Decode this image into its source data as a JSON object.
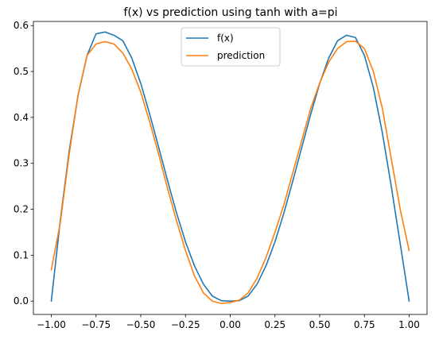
{
  "chart_data": {
    "type": "line",
    "title": "f(x) vs prediction using tanh with a=pi",
    "xlabel": "",
    "ylabel": "",
    "xlim": [
      -1.1,
      1.1
    ],
    "ylim": [
      -0.029,
      0.609
    ],
    "x_ticks": [
      -1.0,
      -0.75,
      -0.5,
      -0.25,
      0.0,
      0.25,
      0.5,
      0.75,
      1.0
    ],
    "x_tick_labels": [
      "−1.00",
      "−0.75",
      "−0.50",
      "−0.25",
      "0.00",
      "0.25",
      "0.50",
      "0.75",
      "1.00"
    ],
    "y_ticks": [
      0.0,
      0.1,
      0.2,
      0.3,
      0.4,
      0.5,
      0.6
    ],
    "y_tick_labels": [
      "0.0",
      "0.1",
      "0.2",
      "0.3",
      "0.4",
      "0.5",
      "0.6"
    ],
    "grid": false,
    "legend_position": "top-center",
    "series": [
      {
        "name": "f(x)",
        "color": "#1f77b4",
        "x": [
          -1.0,
          -0.95,
          -0.9,
          -0.85,
          -0.8,
          -0.75,
          -0.7,
          -0.65,
          -0.6,
          -0.55,
          -0.5,
          -0.45,
          -0.4,
          -0.35,
          -0.3,
          -0.25,
          -0.2,
          -0.15,
          -0.1,
          -0.05,
          0.0,
          0.05,
          0.1,
          0.15,
          0.2,
          0.25,
          0.3,
          0.35,
          0.4,
          0.45,
          0.5,
          0.55,
          0.6,
          0.65,
          0.7,
          0.75,
          0.8,
          0.85,
          0.9,
          0.95,
          1.0
        ],
        "values": [
          0.0,
          0.175,
          0.327,
          0.449,
          0.535,
          0.582,
          0.586,
          0.579,
          0.567,
          0.529,
          0.474,
          0.407,
          0.335,
          0.262,
          0.192,
          0.129,
          0.077,
          0.037,
          0.011,
          0.001,
          0.0,
          0.001,
          0.011,
          0.037,
          0.077,
          0.129,
          0.192,
          0.262,
          0.335,
          0.407,
          0.474,
          0.529,
          0.567,
          0.579,
          0.574,
          0.535,
          0.465,
          0.367,
          0.25,
          0.125,
          0.0
        ]
      },
      {
        "name": "prediction",
        "color": "#ff7f0e",
        "x": [
          -1.0,
          -0.95,
          -0.9,
          -0.85,
          -0.8,
          -0.75,
          -0.7,
          -0.65,
          -0.6,
          -0.55,
          -0.5,
          -0.45,
          -0.4,
          -0.35,
          -0.3,
          -0.25,
          -0.2,
          -0.15,
          -0.1,
          -0.05,
          0.0,
          0.05,
          0.1,
          0.15,
          0.2,
          0.25,
          0.3,
          0.35,
          0.4,
          0.45,
          0.5,
          0.55,
          0.6,
          0.65,
          0.7,
          0.75,
          0.8,
          0.85,
          0.9,
          0.95,
          1.0
        ],
        "values": [
          0.068,
          0.17,
          0.32,
          0.45,
          0.535,
          0.56,
          0.565,
          0.56,
          0.54,
          0.505,
          0.455,
          0.39,
          0.32,
          0.245,
          0.175,
          0.11,
          0.055,
          0.018,
          0.0,
          -0.005,
          -0.003,
          0.002,
          0.018,
          0.05,
          0.095,
          0.15,
          0.21,
          0.28,
          0.35,
          0.42,
          0.475,
          0.52,
          0.55,
          0.565,
          0.566,
          0.55,
          0.5,
          0.42,
          0.31,
          0.2,
          0.11
        ]
      }
    ]
  }
}
